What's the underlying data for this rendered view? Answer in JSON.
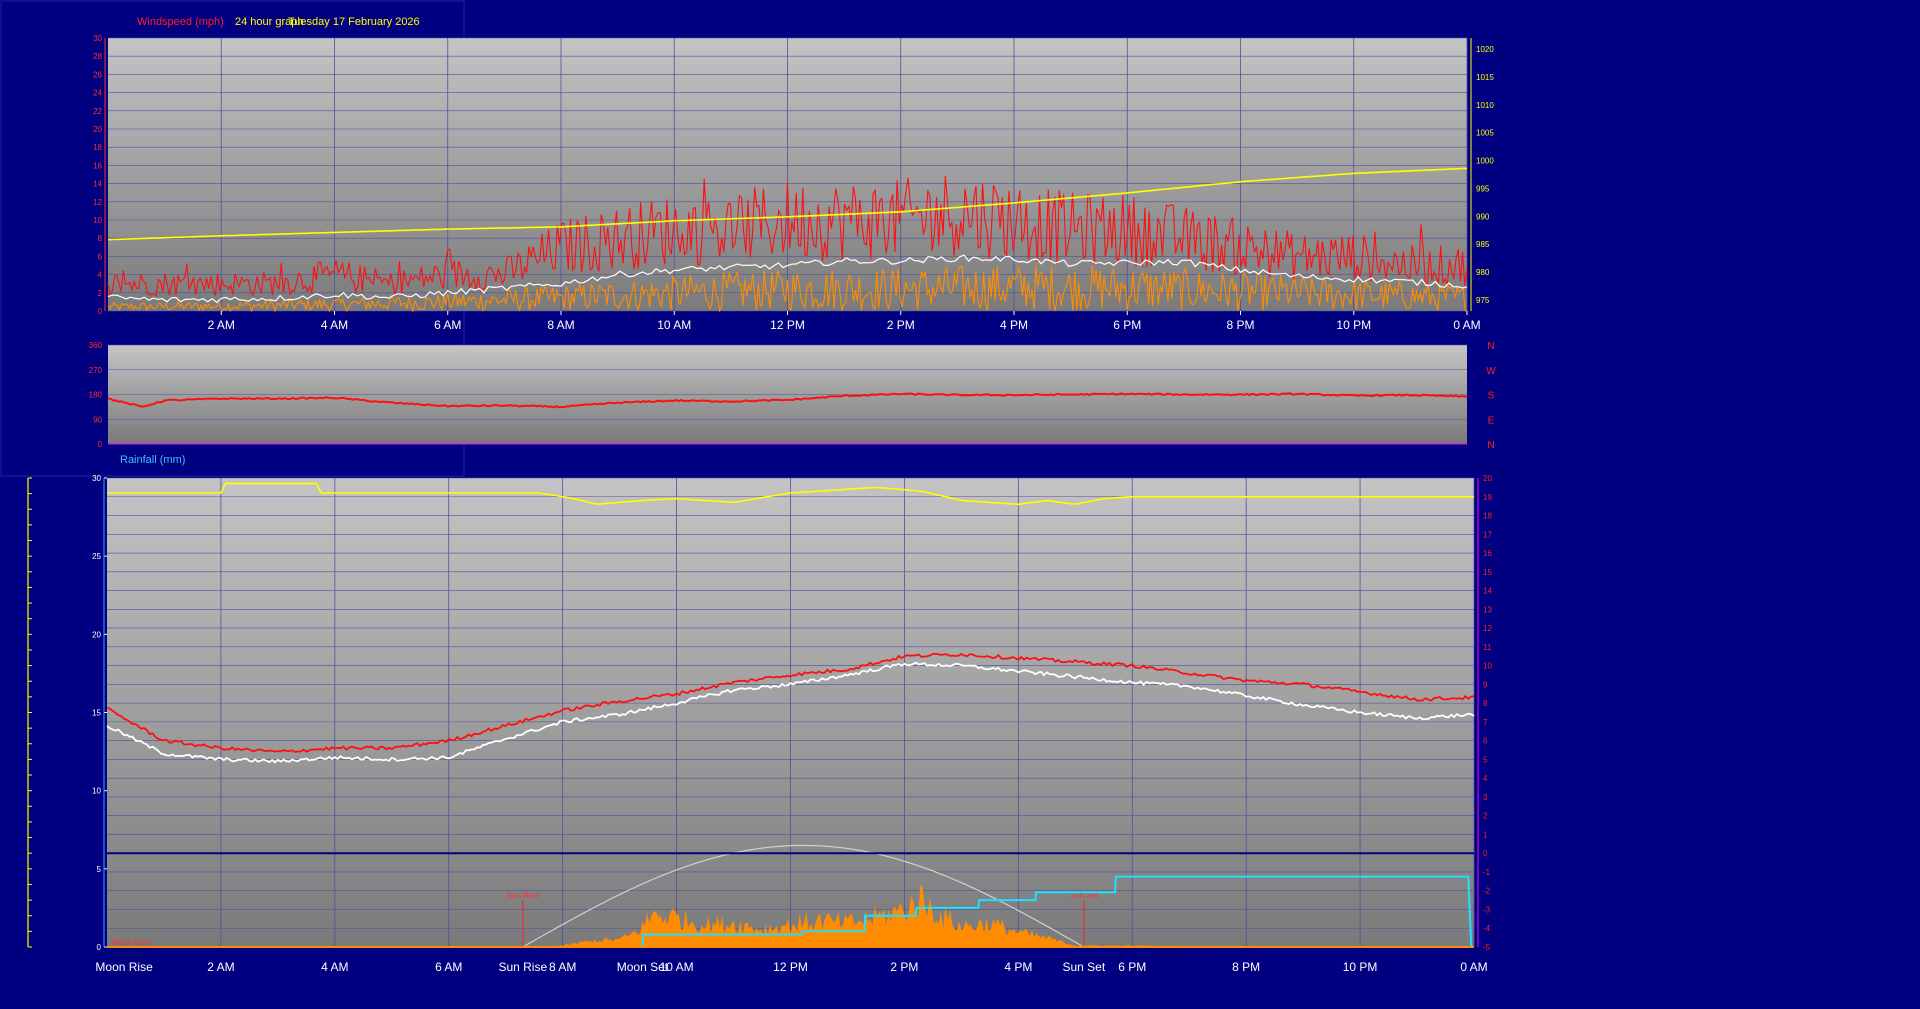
{
  "header": {
    "wind_label": "Windspeed (mph)",
    "title": "24 hour graph",
    "date": "Tuesday 17 February 2026",
    "rain_label": "Rainfall (mm)"
  },
  "colors": {
    "background": "#000080",
    "plot_top": "#c4c4c4",
    "plot_bottom": "#7a7a7a",
    "grid": "#5050a0",
    "gust": "#ff1010",
    "average_wind": "#ffffff",
    "lull": "#ff8c00",
    "pressure": "#ffff00",
    "direction": "#ff1010",
    "temperature": "#ff1010",
    "dewpoint": "#ffffff",
    "humidity": "#ffff00",
    "solar": "#ff8c00",
    "rain": "#20e0ff",
    "sun_arc": "#d0d0d0",
    "freezing_line": "#000080"
  },
  "time_axis": {
    "tick_labels": [
      "2 AM",
      "4 AM",
      "6 AM",
      "8 AM",
      "10 AM",
      "12 PM",
      "2 PM",
      "4 PM",
      "6 PM",
      "8 PM",
      "10 PM",
      "0 AM"
    ],
    "tick_hours": [
      2,
      4,
      6,
      8,
      10,
      12,
      14,
      16,
      18,
      20,
      22,
      24
    ],
    "bottom_labels": [
      {
        "text": "Moon Rise",
        "hour": 0.3
      },
      {
        "text": "2 AM",
        "hour": 2
      },
      {
        "text": "4 AM",
        "hour": 4
      },
      {
        "text": "6 AM",
        "hour": 6
      },
      {
        "text": "Sun Rise",
        "hour": 7.3
      },
      {
        "text": "8 AM",
        "hour": 8
      },
      {
        "text": "Moon Set",
        "hour": 9.4
      },
      {
        "text": "10 AM",
        "hour": 10
      },
      {
        "text": "12 PM",
        "hour": 12
      },
      {
        "text": "2 PM",
        "hour": 14
      },
      {
        "text": "4 PM",
        "hour": 16
      },
      {
        "text": "Sun Set",
        "hour": 17.15
      },
      {
        "text": "6 PM",
        "hour": 18
      },
      {
        "text": "8 PM",
        "hour": 20
      },
      {
        "text": "10 PM",
        "hour": 22
      },
      {
        "text": "0 AM",
        "hour": 24
      }
    ]
  },
  "chart_data": [
    {
      "type": "line",
      "name": "wind-pressure",
      "x_range_hours": [
        0,
        24
      ],
      "left_axis": {
        "ylim": [
          0,
          30
        ],
        "ticks": [
          0,
          2,
          4,
          6,
          8,
          10,
          12,
          14,
          16,
          18,
          20,
          22,
          24,
          26,
          28,
          30
        ]
      },
      "right_axis": {
        "ylim": [
          973,
          1022
        ],
        "ticks": [
          975,
          980,
          985,
          990,
          995,
          1000,
          1005,
          1010,
          1015,
          1020
        ]
      },
      "series": [
        {
          "key": "pressure",
          "axis": "right",
          "x": [
            0,
            2,
            4,
            6,
            8,
            10,
            12,
            14,
            16,
            18,
            20,
            22,
            24
          ],
          "y": [
            985.8,
            986.5,
            987.1,
            987.7,
            988.1,
            989.2,
            989.9,
            990.8,
            992.4,
            994.2,
            996.2,
            997.7,
            998.6
          ]
        },
        {
          "key": "gust",
          "x": [
            0,
            1,
            2,
            3,
            4,
            5,
            6,
            7,
            8,
            9,
            10,
            11,
            12,
            13,
            14,
            15,
            16,
            17,
            18,
            19,
            20,
            21,
            22,
            23,
            24
          ],
          "y": [
            3,
            3,
            3,
            3,
            4,
            3,
            4,
            4,
            7,
            8,
            9,
            9,
            10,
            10,
            10,
            11,
            10,
            9,
            9,
            8,
            7,
            6,
            6,
            5,
            5
          ]
        },
        {
          "key": "average",
          "x": [
            0,
            1,
            2,
            3,
            4,
            5,
            6,
            7,
            8,
            9,
            10,
            11,
            12,
            13,
            14,
            15,
            16,
            17,
            18,
            19,
            20,
            21,
            22,
            23,
            24
          ],
          "y": [
            1.5,
            1.2,
            1.3,
            1.4,
            1.8,
            1.5,
            2,
            2.5,
            3,
            4,
            4.5,
            4.8,
            5,
            5.5,
            5.5,
            5.8,
            5.7,
            5.2,
            5.3,
            5.4,
            4.5,
            3.8,
            3.5,
            3.2,
            2.8
          ]
        },
        {
          "key": "lull",
          "x": [
            0,
            2,
            4,
            6,
            8,
            10,
            12,
            14,
            16,
            18,
            20,
            22,
            24
          ],
          "y": [
            0.5,
            0.6,
            0.8,
            1.1,
            1.6,
            2.2,
            2.6,
            2.7,
            2.9,
            2.8,
            2.4,
            2.0,
            1.6
          ]
        }
      ]
    },
    {
      "type": "line",
      "name": "wind-direction",
      "x_range_hours": [
        0,
        24
      ],
      "ylim": [
        0,
        360
      ],
      "left_ticks": [
        0,
        90,
        180,
        270,
        360
      ],
      "right_labels": [
        "N",
        "W",
        "S",
        "E",
        "N"
      ],
      "series": [
        {
          "key": "direction",
          "x": [
            0,
            0.6,
            1,
            2,
            3,
            4,
            5,
            6,
            7,
            8,
            9,
            10,
            11,
            12,
            13,
            14,
            15,
            16,
            17,
            18,
            19,
            20,
            21,
            22,
            23,
            24
          ],
          "y": [
            165,
            135,
            158,
            165,
            165,
            168,
            150,
            138,
            140,
            135,
            150,
            158,
            155,
            160,
            175,
            182,
            178,
            178,
            180,
            182,
            180,
            180,
            182,
            176,
            178,
            172
          ]
        }
      ]
    },
    {
      "type": "area",
      "name": "temperature-rain-solar",
      "x_range_hours": [
        0,
        24
      ],
      "left_axis": {
        "ylim": [
          0,
          30
        ],
        "ticks": [
          0,
          5,
          10,
          15,
          20,
          25,
          30
        ]
      },
      "right_axis": {
        "ylim": [
          -5,
          20
        ],
        "ticks": [
          -5,
          -4,
          -3,
          -2,
          -1,
          0,
          1,
          2,
          3,
          4,
          5,
          6,
          7,
          8,
          9,
          10,
          11,
          12,
          13,
          14,
          15,
          16,
          17,
          18,
          19,
          20
        ]
      },
      "series": [
        {
          "key": "humidity",
          "x": [
            0,
            2,
            2.05,
            3.7,
            3.75,
            7.6,
            8.2,
            8.6,
            9.4,
            10,
            11,
            12,
            13.5,
            14.3,
            15,
            16,
            16.5,
            17,
            17.5,
            18,
            24
          ],
          "y": [
            19.2,
            19.2,
            19.7,
            19.7,
            19.2,
            19.2,
            18.9,
            18.6,
            18.8,
            18.9,
            18.7,
            19.2,
            19.5,
            19.3,
            18.8,
            18.6,
            18.8,
            18.6,
            18.9,
            19.0,
            19.0
          ]
        },
        {
          "key": "temperature",
          "x": [
            0,
            1,
            2,
            3,
            4,
            5,
            6,
            7,
            8,
            9,
            10,
            11,
            12,
            13,
            14,
            15,
            16,
            17,
            18,
            19,
            20,
            21,
            22,
            23,
            24
          ],
          "y": [
            7.7,
            6,
            5.6,
            5.4,
            5.6,
            5.6,
            6,
            6.8,
            7.6,
            8.1,
            8.5,
            9.1,
            9.5,
            9.8,
            10.5,
            10.6,
            10.4,
            10.2,
            10,
            9.6,
            9.2,
            9,
            8.6,
            8.2,
            8.3
          ]
        },
        {
          "key": "dewpoint",
          "x": [
            0,
            1,
            2,
            3,
            4,
            5,
            6,
            7,
            8,
            9,
            10,
            11,
            12,
            13,
            14,
            15,
            16,
            17,
            18,
            19,
            20,
            21,
            22,
            23,
            24
          ],
          "y": [
            6.8,
            5.3,
            5,
            4.9,
            5.1,
            5,
            5.1,
            6.1,
            7,
            7.4,
            8,
            8.7,
            9,
            9.5,
            10.1,
            10,
            9.7,
            9.4,
            9.1,
            8.9,
            8.4,
            7.9,
            7.5,
            7.2,
            7.4
          ]
        },
        {
          "key": "rain",
          "x": [
            0,
            9.4,
            9.41,
            12.2,
            12.21,
            13.3,
            13.31,
            14.2,
            14.21,
            15.3,
            15.31,
            16.3,
            16.31,
            17.7,
            17.71,
            23.9,
            23.95
          ],
          "y": [
            0,
            0,
            0.8,
            0.8,
            1,
            1,
            2,
            2,
            2.5,
            2.5,
            3,
            3,
            3.5,
            3.5,
            4.5,
            4.5,
            0
          ]
        },
        {
          "key": "solar",
          "x": [
            0,
            7.6,
            8,
            8.5,
            9,
            9.3,
            9.6,
            10,
            10.5,
            11,
            11.5,
            12,
            12.5,
            13,
            13.5,
            14,
            14.3,
            14.6,
            15,
            15.5,
            16,
            16.5,
            17,
            24
          ],
          "y": [
            0,
            0,
            0.1,
            0.4,
            0.5,
            1.0,
            2.2,
            2.0,
            1.5,
            1.6,
            1.2,
            1.5,
            1.8,
            1.6,
            2.0,
            2.5,
            3.2,
            2.2,
            1.4,
            1.6,
            1.0,
            0.6,
            0.1,
            0
          ]
        },
        {
          "key": "sun_arc",
          "x": [
            7.3,
            12.2,
            17.15
          ],
          "y": [
            0,
            6.5,
            0
          ]
        }
      ],
      "markers": [
        {
          "label": "Sun Rise",
          "hour": 7.3
        },
        {
          "label": "Sun Set",
          "hour": 17.15
        },
        {
          "label": "Moon Rise",
          "hour": 0.05
        }
      ]
    }
  ]
}
